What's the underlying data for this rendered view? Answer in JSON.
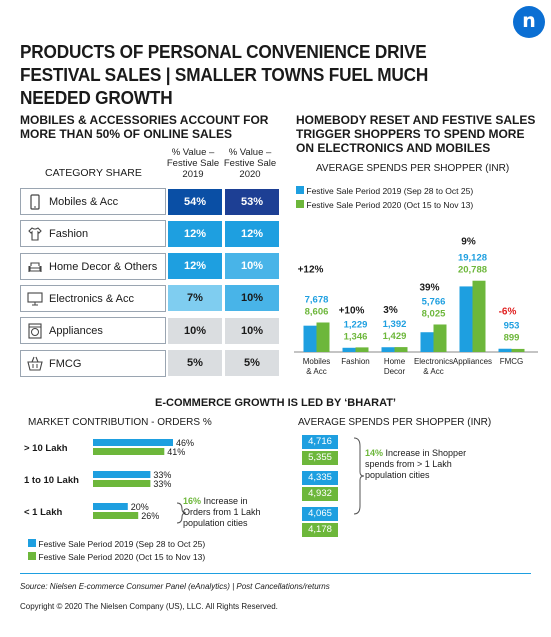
{
  "logo": "n",
  "title": "PRODUCTS OF PERSONAL CONVENIENCE DRIVE FESTIVAL SALES | SMALLER TOWNS FUEL MUCH NEEDED GROWTH",
  "colors": {
    "blue": "#1e9fe0",
    "green": "#6db73b",
    "dark_blue": "#0a4fa5",
    "navy": "#1d3f94"
  },
  "share_section": {
    "title": "MOBILES & ACCESSORIES ACCOUNT FOR MORE THAN 50% OF ONLINE SALES",
    "category_header": "CATEGORY SHARE",
    "col1_header": "% Value – Festive Sale 2019",
    "col2_header": "% Value – Festive Sale 2020",
    "rows": [
      {
        "label": "Mobiles & Acc",
        "icon": "mobile-phone-icon",
        "v2019": "54%",
        "v2020": "53%"
      },
      {
        "label": "Fashion",
        "icon": "shirt-icon",
        "v2019": "12%",
        "v2020": "12%"
      },
      {
        "label": "Home Decor & Others",
        "icon": "sofa-icon",
        "v2019": "12%",
        "v2020": "10%"
      },
      {
        "label": "Electronics & Acc",
        "icon": "monitor-icon",
        "v2019": "7%",
        "v2020": "10%"
      },
      {
        "label": "Appliances",
        "icon": "washing-machine-icon",
        "v2019": "10%",
        "v2020": "10%"
      },
      {
        "label": "FMCG",
        "icon": "shopping-basket-icon",
        "v2019": "5%",
        "v2020": "5%"
      }
    ]
  },
  "spend_section": {
    "title": "HOMEBODY RESET AND FESTIVE SALES TRIGGER SHOPPERS TO SPEND MORE ON ELECTRONICS AND MOBILES",
    "subtitle": "AVERAGE SPENDS PER SHOPPER (INR)",
    "legend_2019": "Festive Sale Period 2019 (Sep 28 to Oct 25)",
    "legend_2020": "Festive Sale Period 2020 (Oct 15 to Nov 13)"
  },
  "bharat_section": {
    "title": "E-COMMERCE GROWTH IS LED BY ‘BHARAT’",
    "market_title": "MARKET CONTRIBUTION - ORDERS %",
    "spend_title": "AVERAGE SPENDS PER SHOPPER (INR)",
    "orders_note_pct": "16%",
    "orders_note_text": " Increase in Orders from 1 Lakh population cities",
    "spend_note_pct": "14%",
    "spend_note_text": " Increase in Shopper spends from > 1 Lakh population cities",
    "legend_2019": "Festive Sale Period 2019 (Sep 28 to Oct 25)",
    "legend_2020": "Festive Sale Period 2020 (Oct 15 to Nov 13)"
  },
  "source": "Source: Nielsen E-commerce Consumer Panel (eAnalytics) | Post Cancellations/returns",
  "copyright": "Copyright © 2020 The Nielsen Company (US), LLC. All Rights Reserved.",
  "chart_data": [
    {
      "type": "bar",
      "title": "AVERAGE SPENDS PER SHOPPER (INR)",
      "categories": [
        "Mobiles & Acc",
        "Fashion",
        "Home Decor",
        "Electronics & Acc",
        "Appliances",
        "FMCG"
      ],
      "growth": [
        "+12%",
        "+10%",
        "3%",
        "39%",
        "9%",
        "-6%"
      ],
      "series": [
        {
          "name": "Festive Sale Period 2019 (Sep 28 to Oct 25)",
          "values": [
            7678,
            1229,
            1392,
            5766,
            19128,
            953
          ]
        },
        {
          "name": "Festive Sale Period 2020 (Oct 15 to Nov 13)",
          "values": [
            8606,
            1346,
            1429,
            8025,
            20788,
            899
          ]
        }
      ],
      "value_labels": {
        "2019": [
          "7,678",
          "1,229",
          "1,392",
          "5,766",
          "19,128",
          "953"
        ],
        "2020": [
          "8,606",
          "1,346",
          "1,429",
          "8,025",
          "20,788",
          "899"
        ]
      },
      "ylim": [
        0,
        22000
      ]
    },
    {
      "type": "bar",
      "title": "MARKET CONTRIBUTION - ORDERS %",
      "categories": [
        "> 10 Lakh",
        "1 to 10 Lakh",
        "< 1 Lakh"
      ],
      "series": [
        {
          "name": "Festive Sale Period 2019 (Sep 28 to Oct 25)",
          "values": [
            46,
            33,
            20
          ]
        },
        {
          "name": "Festive Sale Period 2020 (Oct 15 to Nov 13)",
          "values": [
            41,
            33,
            26
          ]
        }
      ],
      "value_labels": {
        "2019": [
          "46%",
          "33%",
          "20%"
        ],
        "2020": [
          "41%",
          "33%",
          "26%"
        ]
      }
    },
    {
      "type": "table",
      "title": "AVERAGE SPENDS PER SHOPPER (INR)",
      "series": [
        {
          "name": "Festive Sale Period 2019 (Sep 28 to Oct 25)",
          "values": [
            4716,
            4335,
            4065
          ]
        },
        {
          "name": "Festive Sale Period 2020 (Oct 15 to Nov 13)",
          "values": [
            5355,
            4932,
            4178
          ]
        }
      ],
      "value_labels": {
        "2019": [
          "4,716",
          "4,335",
          "4,065"
        ],
        "2020": [
          "5,355",
          "4,932",
          "4,178"
        ]
      }
    }
  ]
}
